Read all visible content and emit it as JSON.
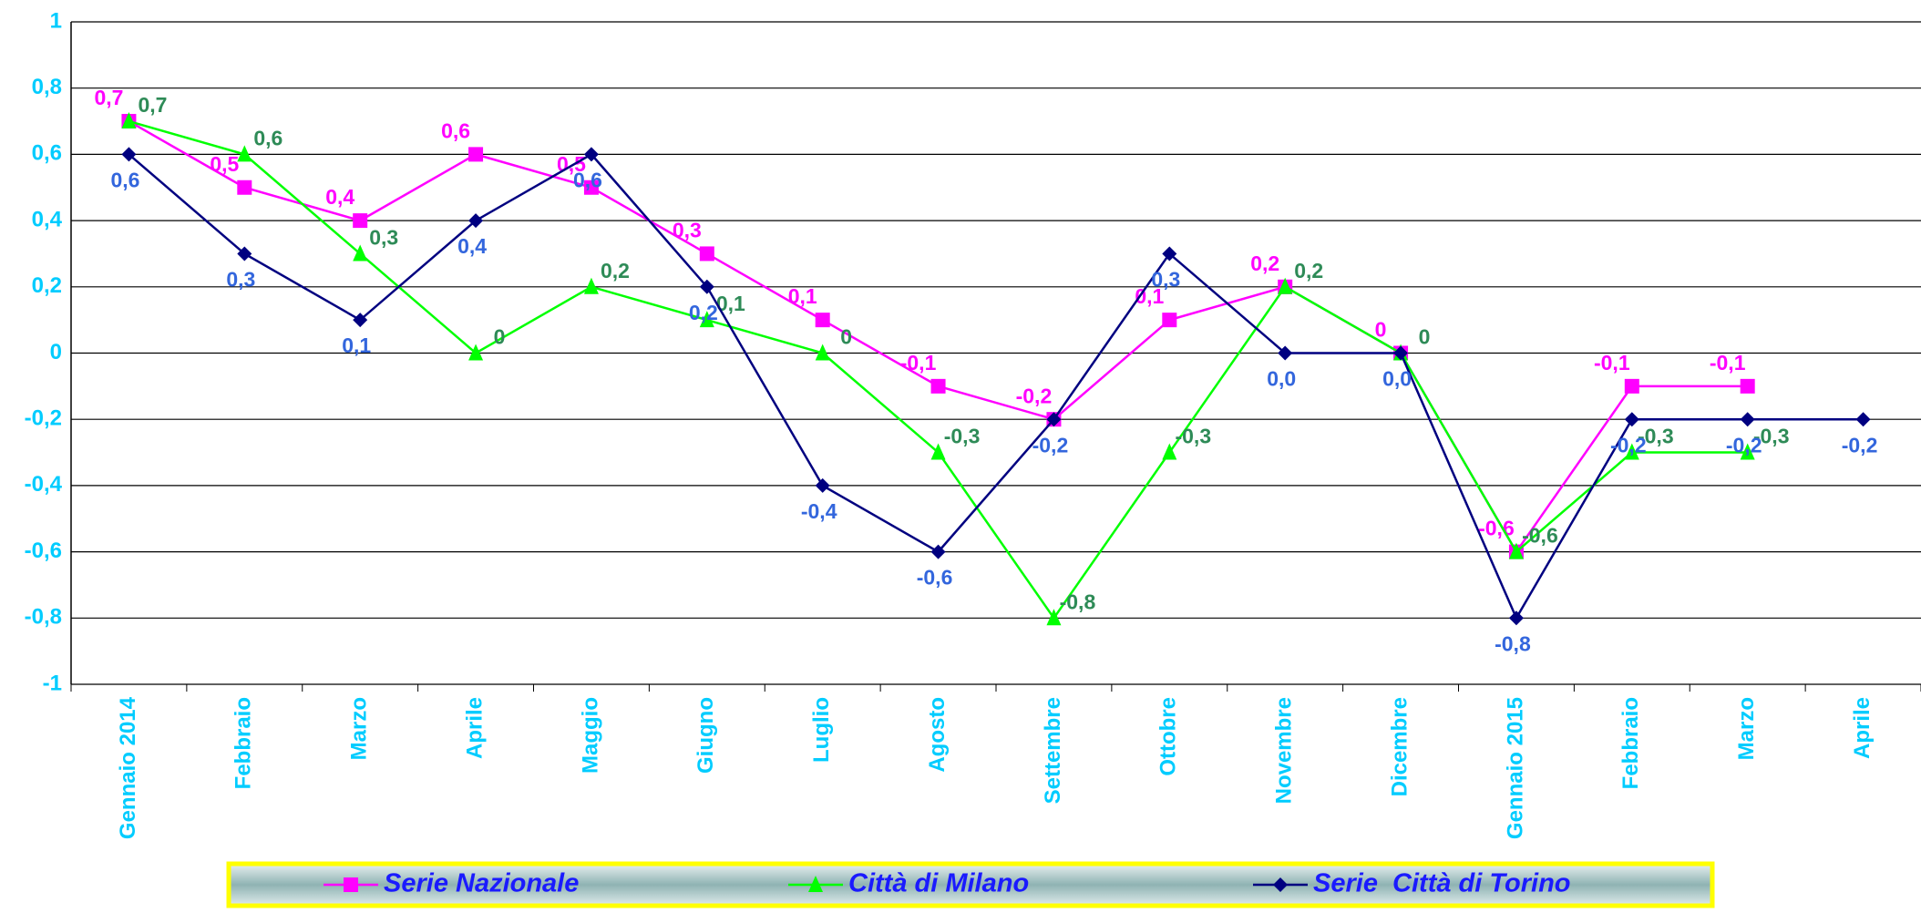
{
  "chart_data": {
    "type": "line",
    "categories": [
      "Gennaio 2014",
      "Febbraio",
      "Marzo",
      "Aprile",
      "Maggio",
      "Giugno",
      "Luglio",
      "Agosto",
      "Settembre",
      "Ottobre",
      "Novembre",
      "Dicembre",
      "Gennaio 2015",
      "Febbraio",
      "Marzo",
      "Aprile"
    ],
    "series": [
      {
        "name": "Serie Nazionale",
        "color": "#ff00ff",
        "label_color": "#ff00ff",
        "marker": "square",
        "values": [
          0.7,
          0.5,
          0.4,
          0.6,
          0.5,
          0.3,
          0.1,
          -0.1,
          -0.2,
          0.1,
          0.2,
          0,
          -0.6,
          -0.1,
          -0.1,
          null
        ],
        "value_labels": [
          "0,7",
          "0,5",
          "0,4",
          "0,6",
          "0,5",
          "0,3",
          "0,1",
          "-0,1",
          "-0,2",
          "0,1",
          "0,2",
          "0",
          "-0,6",
          "-0,1",
          "-0,1",
          null
        ]
      },
      {
        "name": "Città di Milano",
        "color": "#00ff00",
        "label_color": "#2e8b57",
        "marker": "triangle",
        "values": [
          0.7,
          0.6,
          0.3,
          0,
          0.2,
          0.1,
          0,
          -0.3,
          -0.8,
          -0.3,
          0.2,
          0,
          -0.6,
          -0.3,
          -0.3,
          null
        ],
        "value_labels": [
          "0,7",
          "0,6",
          "0,3",
          "0",
          "0,2",
          "0,1",
          "0",
          "-0,3",
          "-0,8",
          "-0,3",
          "0,2",
          "0",
          "-0,6",
          "-0,3",
          "-0,3",
          null
        ]
      },
      {
        "name": "Serie  Città di Torino",
        "color": "#000080",
        "label_color": "#3366dd",
        "marker": "diamond",
        "values": [
          0.6,
          0.3,
          0.1,
          0.4,
          0.6,
          0.2,
          -0.4,
          -0.6,
          -0.2,
          0.3,
          0,
          0,
          -0.8,
          -0.2,
          -0.2,
          -0.2
        ],
        "value_labels": [
          "0,6",
          "0,3",
          "0,1",
          "0,4",
          "0,6",
          "0,2",
          "-0,4",
          "-0,6",
          "-0,2",
          "0,3",
          "0,0",
          "0,0",
          "-0,8",
          "-0,2",
          "-0,2",
          "-0,2"
        ]
      }
    ],
    "ylim": [
      -1,
      1
    ],
    "yticks": [
      -1,
      {
        "value": -0.8,
        "label": "-0,8"
      },
      {
        "value": -0.6,
        "label": "-0,6"
      },
      {
        "value": -0.4,
        "label": "-0,4"
      },
      {
        "value": -0.2,
        "label": "-0,2"
      },
      0,
      {
        "value": 0.2,
        "label": "0,2"
      },
      {
        "value": 0.4,
        "label": "0,4"
      },
      {
        "value": 0.6,
        "label": "0,6"
      },
      {
        "value": 0.8,
        "label": "0,8"
      },
      1
    ],
    "grid": true,
    "legend": "bottom"
  }
}
